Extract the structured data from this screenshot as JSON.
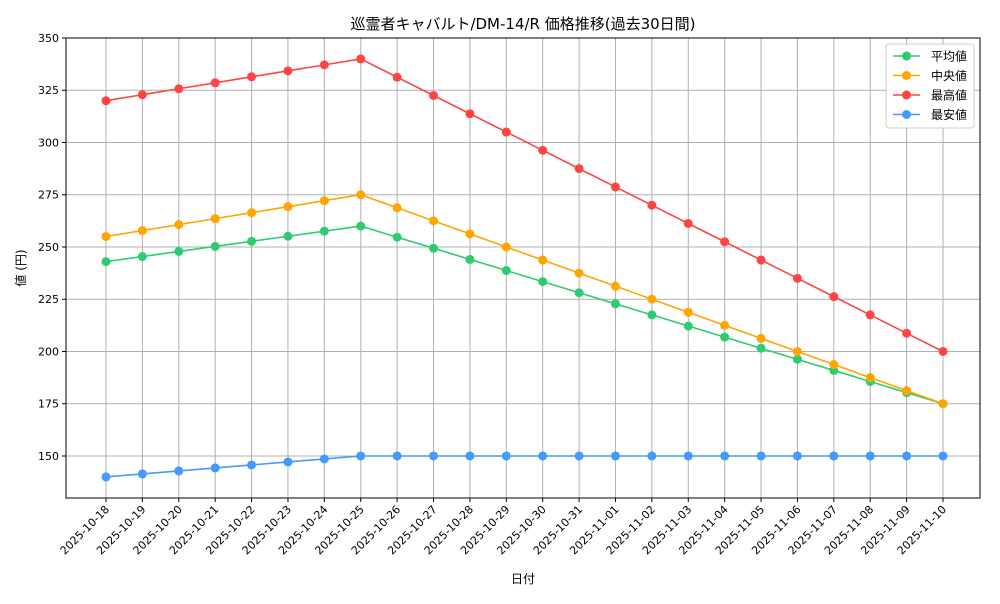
{
  "chart_data": {
    "type": "line",
    "title": "巡霊者キャバルト/DM-14/R 価格推移(過去30日間)",
    "xlabel": "日付",
    "ylabel": "値 (円)",
    "ylim": [
      129.9,
      350
    ],
    "yticks": [
      150,
      175,
      200,
      225,
      250,
      275,
      300,
      325,
      350
    ],
    "grid": true,
    "legend_position": "top-right",
    "x": [
      "2025-10-18",
      "2025-10-19",
      "2025-10-20",
      "2025-10-21",
      "2025-10-22",
      "2025-10-23",
      "2025-10-24",
      "2025-10-25",
      "2025-10-26",
      "2025-10-27",
      "2025-10-28",
      "2025-10-29",
      "2025-10-30",
      "2025-10-31",
      "2025-11-01",
      "2025-11-02",
      "2025-11-03",
      "2025-11-04",
      "2025-11-05",
      "2025-11-06",
      "2025-11-07",
      "2025-11-08",
      "2025-11-09",
      "2025-11-10"
    ],
    "series": [
      {
        "name": "平均値",
        "color": "#2ecc71",
        "values": [
          243,
          245.43,
          247.86,
          250.29,
          252.71,
          255.14,
          257.57,
          260,
          254.69,
          249.38,
          244.06,
          238.75,
          233.44,
          228.13,
          222.81,
          217.5,
          212.19,
          206.88,
          201.56,
          196.25,
          190.94,
          185.63,
          180.31,
          175
        ]
      },
      {
        "name": "中央値",
        "color": "#ffa500",
        "values": [
          255,
          257.86,
          260.71,
          263.57,
          266.43,
          269.29,
          272.14,
          275,
          268.75,
          262.5,
          256.25,
          250,
          243.75,
          237.5,
          231.25,
          225,
          218.75,
          212.5,
          206.25,
          200,
          193.75,
          187.5,
          181.25,
          175
        ]
      },
      {
        "name": "最高値",
        "color": "#ff4444",
        "values": [
          320,
          322.86,
          325.71,
          328.57,
          331.43,
          334.29,
          337.14,
          340,
          331.25,
          322.5,
          313.75,
          305,
          296.25,
          287.5,
          278.75,
          270,
          261.25,
          252.5,
          243.75,
          235,
          226.25,
          217.5,
          208.75,
          200
        ]
      },
      {
        "name": "最安値",
        "color": "#4499ff",
        "values": [
          140,
          141.43,
          142.86,
          144.29,
          145.71,
          147.14,
          148.57,
          150,
          150,
          150,
          150,
          150,
          150,
          150,
          150,
          150,
          150,
          150,
          150,
          150,
          150,
          150,
          150,
          150
        ]
      }
    ]
  }
}
